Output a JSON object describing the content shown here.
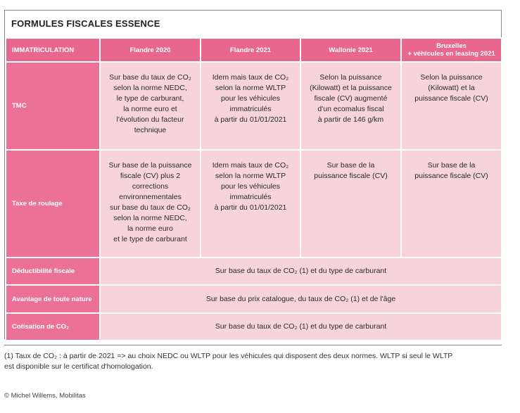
{
  "title": "FORMULES FISCALES ESSENCE",
  "header": {
    "row_label": "IMMATRICULATION",
    "col1": "Flandre 2020",
    "col2": "Flandre 2021",
    "col3": "Wallonie 2021",
    "col4_line1": "Bruxelles",
    "col4_line2": "+ véhicules en leasing 2021"
  },
  "rows": {
    "tmc": {
      "label": "TMC",
      "c1": [
        "Sur base du taux de CO₂",
        "selon la norme NEDC,",
        "le type de carburant,",
        "la norme euro et",
        "l'évolution du facteur",
        "technique"
      ],
      "c2": [
        "Idem mais taux de CO₂",
        "selon la norme WLTP",
        "pour les véhicules",
        "immatriculés",
        "à partir du 01/01/2021"
      ],
      "c3": [
        "Selon la puissance",
        "(Kilowatt) et la puissance",
        "fiscale (CV) augmenté",
        "d'un ecomalus fiscal",
        "à partir de 146 g/km"
      ],
      "c4": [
        "Selon la puissance",
        "(Kilowatt) et la",
        "puissance fiscale (CV)"
      ]
    },
    "roulage": {
      "label": "Taxe de roulage",
      "c1": [
        "Sur base de la puissance",
        "fiscale (CV) plus 2",
        "corrections",
        "environnementales",
        "sur base du taux de CO₂",
        "selon la norme NEDC,",
        "la norme euro",
        "et le type de carburant"
      ],
      "c2": [
        "Idem mais taux de CO₂",
        "selon la norme WLTP",
        "pour les véhicules",
        "immatriculés",
        "à partir du 01/01/2021"
      ],
      "c3": [
        "Sur base de la",
        "puissance fiscale (CV)"
      ],
      "c4": [
        "Sur base de la",
        "puissance fiscale (CV)"
      ]
    },
    "deductibilite": {
      "label": "Déductibilité fiscale",
      "text": "Sur base du taux de CO₂ (1) et du type de carburant"
    },
    "avantage": {
      "label": "Avantage de toute nature",
      "text": "Sur base du prix catalogue, du taux de CO₂ (1) et de l'âge"
    },
    "cotisation": {
      "label": "Cotisation de CO₂",
      "text": "Sur base du taux de CO₂ (1) et du type de carburant"
    }
  },
  "footnote_line1": "(1) Taux de CO₂ : à partir de 2021 => au choix NEDC ou WLTP pour les véhicules qui disposent des deux normes. WLTP si seul le WLTP",
  "footnote_line2": "est disponible sur le certificat d'homologation.",
  "copyright": "© Michel Willems, Mobilitas"
}
